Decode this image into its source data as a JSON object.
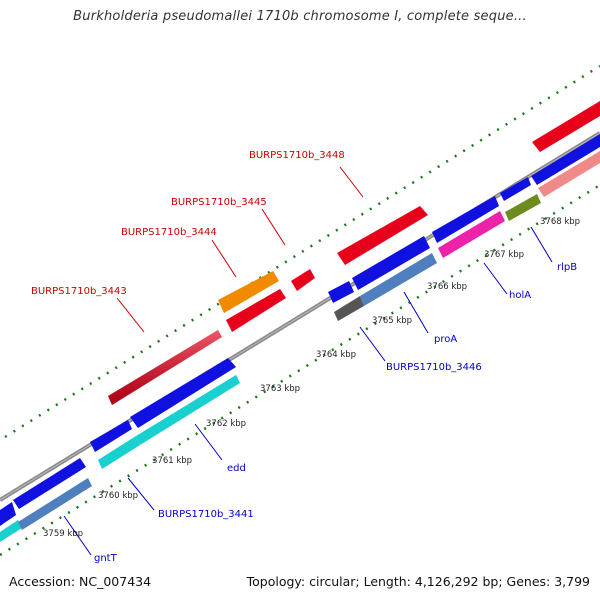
{
  "header": {
    "title": "Burkholderia pseudomallei 1710b chromosome I, complete seque..."
  },
  "footer": {
    "accession": "Accession: NC_007434",
    "topology": "Topology: circular; Length: 4,126,292 bp; Genes: 3,799"
  },
  "ticks": [
    "3759 kbp",
    "3760 kbp",
    "3761 kbp",
    "3762 kbp",
    "3763 kbp",
    "3764 kbp",
    "3765 kbp",
    "3766 kbp",
    "3767 kbp",
    "3768 kbp"
  ],
  "labels": {
    "burps3448": "BURPS1710b_3448",
    "burps3445": "BURPS1710b_3445",
    "burps3444": "BURPS1710b_3444",
    "burps3443": "BURPS1710b_3443",
    "burps3446": "BURPS1710b_3446",
    "burps3441": "BURPS1710b_3441",
    "proA": "proA",
    "holA": "holA",
    "rlpB": "rlpB",
    "edd": "edd",
    "gntT": "gntT"
  },
  "colors": {
    "red": "#e8001a",
    "orange": "#f28a00",
    "blue": "#1010e0",
    "steelblue": "#4f7fbf",
    "cyan": "#18d0d0",
    "magenta": "#ee22aa",
    "olive": "#6e8c1e",
    "pink": "#f08a8a",
    "gray": "#666666",
    "label_red": "#cc0000",
    "label_blue": "#0000cc"
  }
}
